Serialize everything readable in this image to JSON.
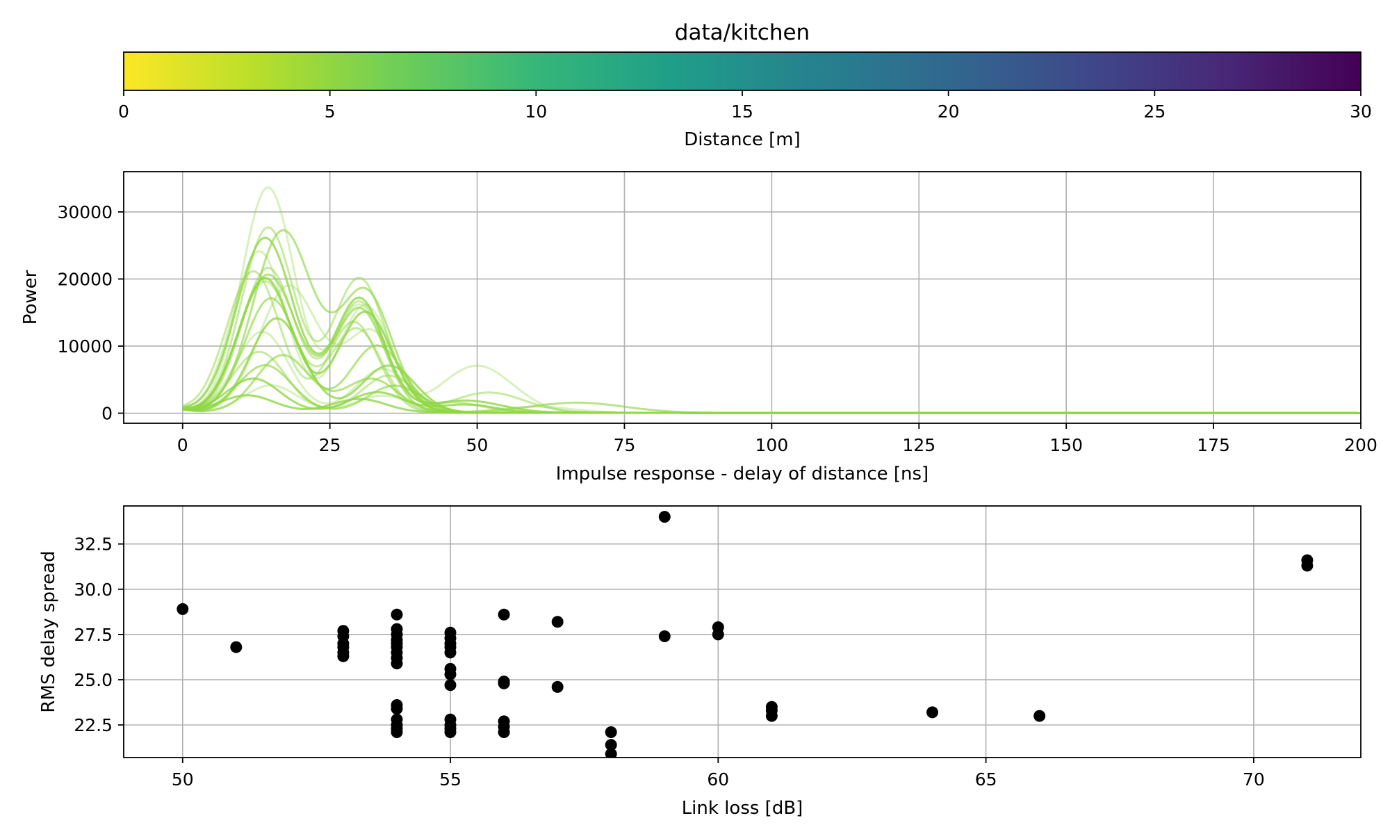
{
  "chart_data": [
    {
      "id": "colorbar",
      "type": "heatmap",
      "title": "data/kitchen",
      "xlabel": "Distance [m]",
      "colormap": "viridis_r",
      "range": [
        0,
        30
      ],
      "ticks": [
        0,
        5,
        10,
        15,
        20,
        25,
        30
      ],
      "tick_labels": [
        "0",
        "5",
        "10",
        "15",
        "20",
        "25",
        "30"
      ],
      "colormap_stops": [
        "#fde725",
        "#b5de2b",
        "#6ece58",
        "#35b779",
        "#1f9e89",
        "#26828e",
        "#31688e",
        "#3e4989",
        "#482878",
        "#440154"
      ]
    },
    {
      "id": "impulse",
      "type": "line",
      "xlabel": "Impulse response - delay of distance [ns]",
      "ylabel": "Power",
      "xlim": [
        -10,
        200
      ],
      "ylim": [
        -1500,
        36000
      ],
      "grid": true,
      "x_ticks": [
        0,
        25,
        50,
        75,
        100,
        125,
        150,
        175,
        200
      ],
      "x_tick_labels": [
        "0",
        "25",
        "50",
        "75",
        "100",
        "125",
        "150",
        "175",
        "200"
      ],
      "y_ticks": [
        0,
        10000,
        20000,
        30000
      ],
      "y_tick_labels": [
        "0",
        "10000",
        "20000",
        "30000"
      ],
      "line_color": "#8fd744",
      "series": [
        {
          "peaks": [
            [
              14.5,
              33500,
              4.5
            ],
            [
              30,
              16000,
              4.2
            ],
            [
              50,
              7000,
              6
            ]
          ]
        },
        {
          "peaks": [
            [
              14.5,
              27500,
              4.5
            ],
            [
              30,
              20000,
              4.5
            ],
            [
              52,
              3000,
              6
            ]
          ]
        },
        {
          "peaks": [
            [
              17,
              27000,
              5
            ],
            [
              31,
              18000,
              4.5
            ],
            [
              67,
              1500,
              8
            ]
          ]
        },
        {
          "peaks": [
            [
              14,
              26000,
              4.8
            ],
            [
              30,
              17000,
              4.2
            ],
            [
              48,
              1800,
              6
            ]
          ]
        },
        {
          "peaks": [
            [
              13,
              24000,
              4.5
            ],
            [
              31,
              16000,
              4.4
            ]
          ]
        },
        {
          "peaks": [
            [
              14.5,
              21500,
              4.5
            ],
            [
              30,
              16500,
              4.3
            ],
            [
              46,
              1500,
              5
            ]
          ]
        },
        {
          "peaks": [
            [
              14.5,
              20500,
              4.8
            ],
            [
              30,
              15500,
              4.3
            ]
          ]
        },
        {
          "peaks": [
            [
              14,
              20000,
              4.5
            ],
            [
              31,
              15000,
              4.5
            ]
          ]
        },
        {
          "peaks": [
            [
              18,
              18800,
              5
            ],
            [
              32,
              12000,
              4.5
            ]
          ]
        },
        {
          "peaks": [
            [
              12,
              21000,
              4.5
            ],
            [
              29,
              13500,
              4.2
            ]
          ]
        },
        {
          "peaks": [
            [
              15,
              17000,
              4.5
            ],
            [
              33,
              10000,
              4.5
            ]
          ]
        },
        {
          "peaks": [
            [
              16,
              14000,
              4.5
            ],
            [
              35,
              7000,
              4.5
            ]
          ]
        },
        {
          "peaks": [
            [
              13.5,
              12000,
              4.5
            ],
            [
              34,
              6500,
              4.5
            ]
          ]
        },
        {
          "peaks": [
            [
              13,
              9000,
              4.5
            ],
            [
              35,
              5500,
              4.5
            ]
          ]
        },
        {
          "peaks": [
            [
              14,
              7000,
              4.5
            ],
            [
              36,
              4000,
              4.5
            ]
          ]
        },
        {
          "peaks": [
            [
              12,
              5000,
              4.5
            ],
            [
              33,
              3000,
              4.5
            ],
            [
              48,
              1200,
              5
            ]
          ]
        },
        {
          "peaks": [
            [
              15,
              4000,
              4.5
            ],
            [
              34,
              2500,
              4.5
            ],
            [
              60,
              900,
              6
            ]
          ]
        },
        {
          "peaks": [
            [
              14,
              19500,
              4.6
            ],
            [
              29.5,
              12500,
              4.3
            ]
          ]
        },
        {
          "peaks": [
            [
              17,
              8500,
              4.5
            ],
            [
              32,
              5000,
              4.5
            ]
          ]
        },
        {
          "peaks": [
            [
              11,
              2500,
              4.5
            ],
            [
              30,
              2000,
              4.5
            ]
          ]
        }
      ]
    },
    {
      "id": "scatter",
      "type": "scatter",
      "xlabel": "Link loss [dB]",
      "ylabel": "RMS delay spread",
      "xlim": [
        48.9,
        72.0
      ],
      "ylim": [
        20.7,
        34.6
      ],
      "grid": true,
      "x_ticks": [
        50,
        55,
        60,
        65,
        70
      ],
      "x_tick_labels": [
        "50",
        "55",
        "60",
        "65",
        "70"
      ],
      "y_ticks": [
        22.5,
        25.0,
        27.5,
        30.0,
        32.5
      ],
      "y_tick_labels": [
        "22.5",
        "25.0",
        "27.5",
        "30.0",
        "32.5"
      ],
      "point_color": "#000000",
      "points": [
        [
          50,
          28.9
        ],
        [
          51,
          26.8
        ],
        [
          53,
          27.7
        ],
        [
          53,
          27.4
        ],
        [
          53,
          27.0
        ],
        [
          53,
          26.8
        ],
        [
          53,
          26.5
        ],
        [
          53,
          26.3
        ],
        [
          54,
          28.6
        ],
        [
          54,
          27.8
        ],
        [
          54,
          27.5
        ],
        [
          54,
          27.2
        ],
        [
          54,
          27.0
        ],
        [
          54,
          26.8
        ],
        [
          54,
          26.5
        ],
        [
          54,
          26.2
        ],
        [
          54,
          25.9
        ],
        [
          54,
          23.6
        ],
        [
          54,
          23.4
        ],
        [
          54,
          22.8
        ],
        [
          54,
          22.5
        ],
        [
          54,
          22.3
        ],
        [
          54,
          22.1
        ],
        [
          55,
          27.6
        ],
        [
          55,
          27.3
        ],
        [
          55,
          27.0
        ],
        [
          55,
          26.8
        ],
        [
          55,
          26.5
        ],
        [
          55,
          25.6
        ],
        [
          55,
          25.3
        ],
        [
          55,
          24.7
        ],
        [
          55,
          22.8
        ],
        [
          55,
          22.5
        ],
        [
          55,
          22.3
        ],
        [
          55,
          22.1
        ],
        [
          56,
          28.6
        ],
        [
          56,
          24.9
        ],
        [
          56,
          24.8
        ],
        [
          56,
          22.7
        ],
        [
          56,
          22.4
        ],
        [
          56,
          22.1
        ],
        [
          57,
          28.2
        ],
        [
          57,
          24.6
        ],
        [
          58,
          22.1
        ],
        [
          58,
          21.4
        ],
        [
          58,
          20.9
        ],
        [
          59,
          34.0
        ],
        [
          59,
          27.4
        ],
        [
          60,
          27.9
        ],
        [
          60,
          27.5
        ],
        [
          61,
          23.5
        ],
        [
          61,
          23.3
        ],
        [
          61,
          23.0
        ],
        [
          64,
          23.2
        ],
        [
          66,
          23.0
        ],
        [
          71,
          31.6
        ],
        [
          71,
          31.3
        ]
      ]
    }
  ]
}
